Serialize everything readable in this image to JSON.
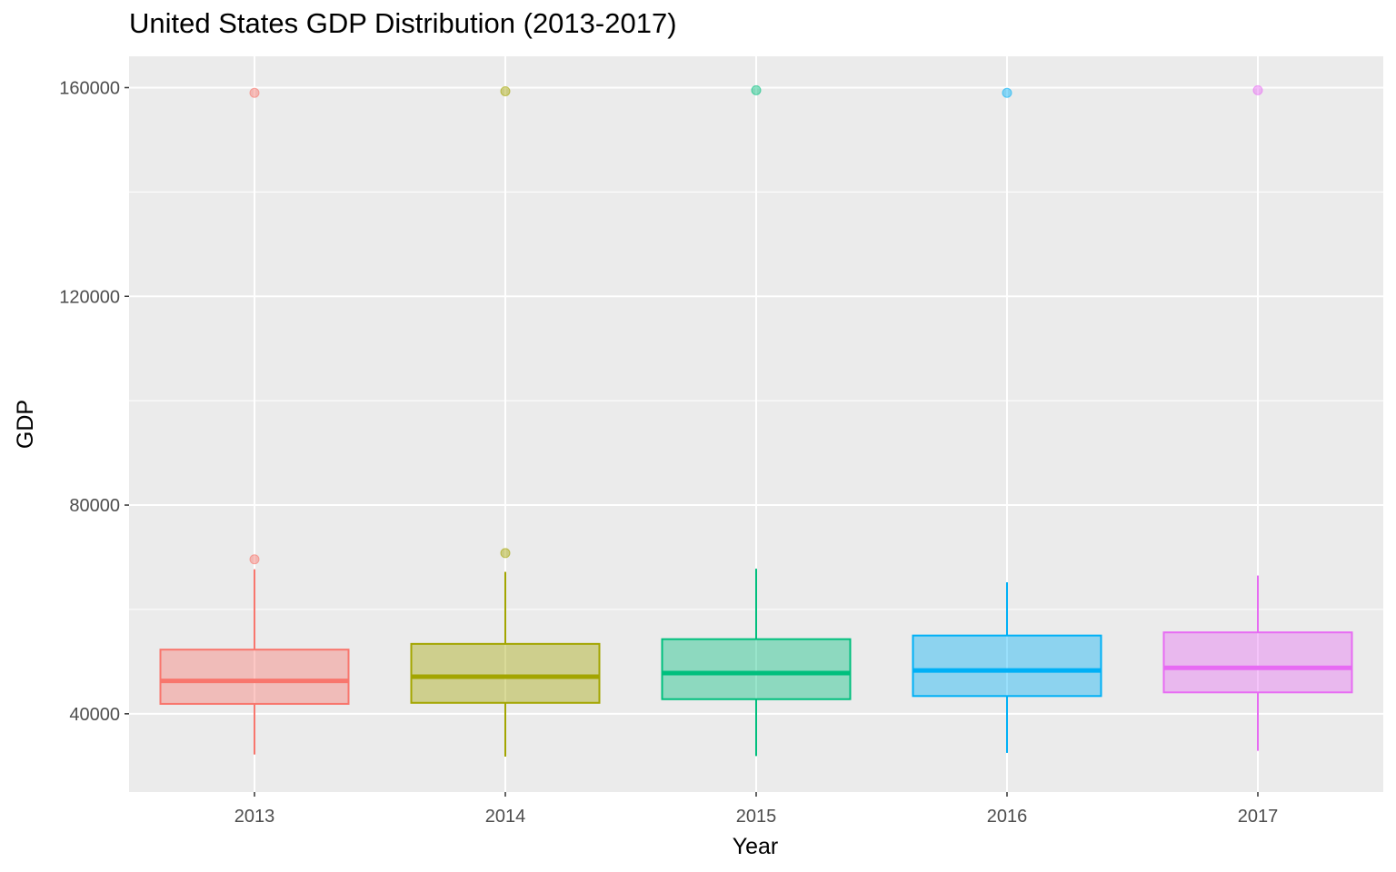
{
  "chart_data": {
    "type": "boxplot",
    "title": "United States GDP Distribution (2013-2017)",
    "xlabel": "Year",
    "ylabel": "GDP",
    "ylim": [
      25000,
      166000
    ],
    "y_ticks": [
      40000,
      80000,
      120000,
      160000
    ],
    "grid": true,
    "legend": "none",
    "categories": [
      "2013",
      "2014",
      "2015",
      "2016",
      "2017"
    ],
    "colors": [
      "#F8766D",
      "#A3A500",
      "#00BF7D",
      "#00B0F6",
      "#E76BF3"
    ],
    "boxes": [
      {
        "category": "2013",
        "whisker_low": 32200,
        "q1": 41900,
        "median": 46300,
        "q3": 52300,
        "whisker_high": 67700,
        "outliers": [
          69600,
          159000
        ]
      },
      {
        "category": "2014",
        "whisker_low": 31800,
        "q1": 42100,
        "median": 47100,
        "q3": 53400,
        "whisker_high": 67200,
        "outliers": [
          70800,
          159300
        ]
      },
      {
        "category": "2015",
        "whisker_low": 31900,
        "q1": 42800,
        "median": 47800,
        "q3": 54300,
        "whisker_high": 67800,
        "outliers": [
          159500
        ]
      },
      {
        "category": "2016",
        "whisker_low": 32500,
        "q1": 43400,
        "median": 48300,
        "q3": 55000,
        "whisker_high": 65200,
        "outliers": [
          159000
        ]
      },
      {
        "category": "2017",
        "whisker_low": 32900,
        "q1": 44100,
        "median": 48800,
        "q3": 55600,
        "whisker_high": 66500,
        "outliers": [
          159500
        ]
      }
    ]
  }
}
